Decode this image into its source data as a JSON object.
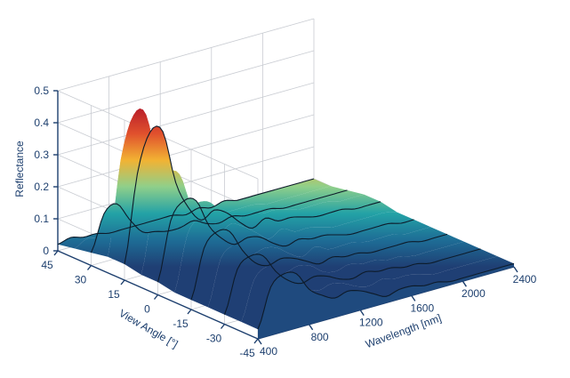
{
  "chart_data": {
    "type": "surface",
    "title": "",
    "zlabel": "Reflectance",
    "xlabel": "Wavelength [nm]",
    "ylabel": "View Angle [°]",
    "x_ticks": [
      "400",
      "800",
      "1200",
      "1600",
      "2000",
      "2400"
    ],
    "y_ticks": [
      "45",
      "30",
      "15",
      "0",
      "-15",
      "-30",
      "-45"
    ],
    "z_ticks": [
      "0",
      "0.1",
      "0.2",
      "0.3",
      "0.4",
      "0.5"
    ],
    "xlim": [
      400,
      2400
    ],
    "ylim": [
      -45,
      45
    ],
    "zlim": [
      0,
      0.5
    ],
    "colormap": [
      "#1f3f74",
      "#1e6d96",
      "#23a2a6",
      "#8fcf8a",
      "#f2b233",
      "#e0502d",
      "#b71c2a"
    ],
    "grid": true,
    "angles": [
      45,
      37.5,
      30,
      22.5,
      15,
      7.5,
      0,
      -7.5,
      -15,
      -22.5,
      -30,
      -37.5,
      -45
    ],
    "wavelengths": [
      400,
      500,
      600,
      700,
      800,
      900,
      1000,
      1100,
      1200,
      1300,
      1400,
      1500,
      1600,
      1700,
      1800,
      1900,
      2000,
      2100,
      2200,
      2300,
      2400
    ],
    "reflectance": [
      [
        0.02,
        0.03,
        0.02,
        0.02,
        0.01,
        0.01,
        0.01,
        0.01,
        0.01,
        0.01,
        0.0,
        0.01,
        0.0,
        0.01,
        0.0,
        0.0,
        0.0,
        0.0,
        0.0,
        0.0,
        0.0
      ],
      [
        0.03,
        0.05,
        0.04,
        0.03,
        0.02,
        0.02,
        0.02,
        0.02,
        0.02,
        0.01,
        0.01,
        0.01,
        0.01,
        0.01,
        0.01,
        0.0,
        0.0,
        0.0,
        0.0,
        0.0,
        0.0
      ],
      [
        0.04,
        0.15,
        0.17,
        0.11,
        0.06,
        0.05,
        0.04,
        0.04,
        0.05,
        0.03,
        0.02,
        0.03,
        0.02,
        0.02,
        0.02,
        0.01,
        0.01,
        0.01,
        0.01,
        0.01,
        0.01
      ],
      [
        0.05,
        0.34,
        0.47,
        0.46,
        0.27,
        0.17,
        0.12,
        0.14,
        0.13,
        0.08,
        0.05,
        0.07,
        0.05,
        0.05,
        0.04,
        0.03,
        0.03,
        0.03,
        0.02,
        0.02,
        0.02
      ],
      [
        0.05,
        0.32,
        0.44,
        0.43,
        0.26,
        0.17,
        0.12,
        0.14,
        0.12,
        0.08,
        0.05,
        0.07,
        0.05,
        0.05,
        0.04,
        0.03,
        0.03,
        0.03,
        0.02,
        0.02,
        0.02
      ],
      [
        0.04,
        0.25,
        0.33,
        0.32,
        0.2,
        0.14,
        0.1,
        0.12,
        0.1,
        0.07,
        0.04,
        0.06,
        0.04,
        0.04,
        0.03,
        0.02,
        0.02,
        0.02,
        0.02,
        0.02,
        0.01
      ],
      [
        0.04,
        0.22,
        0.27,
        0.26,
        0.17,
        0.12,
        0.09,
        0.1,
        0.09,
        0.06,
        0.04,
        0.05,
        0.04,
        0.04,
        0.03,
        0.02,
        0.02,
        0.02,
        0.02,
        0.01,
        0.01
      ],
      [
        0.03,
        0.2,
        0.24,
        0.23,
        0.15,
        0.1,
        0.08,
        0.09,
        0.08,
        0.05,
        0.03,
        0.05,
        0.03,
        0.03,
        0.03,
        0.02,
        0.02,
        0.02,
        0.01,
        0.01,
        0.01
      ],
      [
        0.03,
        0.18,
        0.22,
        0.21,
        0.14,
        0.09,
        0.07,
        0.08,
        0.07,
        0.05,
        0.03,
        0.04,
        0.03,
        0.03,
        0.02,
        0.02,
        0.02,
        0.02,
        0.01,
        0.01,
        0.01
      ],
      [
        0.03,
        0.17,
        0.2,
        0.19,
        0.13,
        0.09,
        0.07,
        0.08,
        0.07,
        0.04,
        0.03,
        0.04,
        0.03,
        0.03,
        0.02,
        0.02,
        0.01,
        0.01,
        0.01,
        0.01,
        0.01
      ],
      [
        0.03,
        0.16,
        0.19,
        0.18,
        0.12,
        0.08,
        0.06,
        0.07,
        0.06,
        0.04,
        0.03,
        0.04,
        0.03,
        0.03,
        0.02,
        0.02,
        0.01,
        0.01,
        0.01,
        0.01,
        0.01
      ],
      [
        0.03,
        0.15,
        0.18,
        0.17,
        0.11,
        0.08,
        0.06,
        0.07,
        0.06,
        0.04,
        0.03,
        0.04,
        0.03,
        0.03,
        0.02,
        0.01,
        0.01,
        0.01,
        0.01,
        0.01,
        0.01
      ],
      [
        0.03,
        0.15,
        0.18,
        0.17,
        0.11,
        0.08,
        0.06,
        0.07,
        0.06,
        0.04,
        0.02,
        0.03,
        0.03,
        0.02,
        0.02,
        0.01,
        0.01,
        0.01,
        0.01,
        0.01,
        0.01
      ]
    ]
  }
}
